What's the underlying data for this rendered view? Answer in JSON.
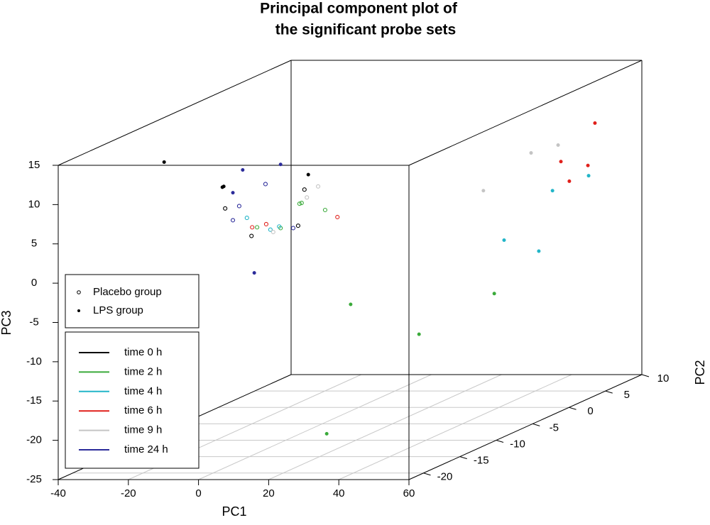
{
  "chart_data": {
    "type": "scatter3d",
    "title": [
      "Principal component plot of",
      "the significant probe sets"
    ],
    "xlabel": "PC1",
    "ylabel": "PC2",
    "zlabel": "PC3",
    "xlim": [
      -40,
      60
    ],
    "xticks": [
      -40,
      -20,
      0,
      20,
      40,
      60
    ],
    "ylim": [
      -22,
      10
    ],
    "yticks": [
      -20,
      -15,
      -10,
      -5,
      0,
      5,
      10
    ],
    "zlim": [
      -25,
      15
    ],
    "zticks": [
      -25,
      -20,
      -15,
      -10,
      -5,
      0,
      5,
      10,
      15
    ],
    "grid": true,
    "groups": [
      {
        "name": "Placebo group",
        "filled": false
      },
      {
        "name": "LPS group",
        "filled": true
      }
    ],
    "times": [
      {
        "name": "time 0 h",
        "color": "#000000"
      },
      {
        "name": "time 2 h",
        "color": "#3aaa3a"
      },
      {
        "name": "time 4 h",
        "color": "#22b5c8"
      },
      {
        "name": "time 6 h",
        "color": "#e0201b"
      },
      {
        "name": "time 9 h",
        "color": "#c4c4c4"
      },
      {
        "name": "time 24 h",
        "color": "#2b2b9a"
      }
    ],
    "points": {
      "x": [
        -34.7,
        -18.1,
        -17.7,
        6.4,
        -12.3,
        -1.5,
        -15.1,
        -9.0,
        8.1,
        27.6,
        28.3,
        32.4,
        38.8,
        46.5,
        25.2,
        57.0,
        47.3,
        55.0,
        49.7,
        55.2,
        44.9,
        31.1,
        41.0,
        -5.8,
        -13.3,
        -15.1,
        2.1,
        -17.3,
        5.3,
        -9.8,
        3.5,
        4.5,
        3.9,
        11.2,
        -8.2,
        -1.5,
        -11.1,
        -4.4,
        -1.9,
        -9.6,
        -5.6,
        14.7,
        9.2,
        6.0,
        -3.6
      ],
      "y": [
        -10,
        -10,
        -10,
        -10,
        -10,
        -10,
        -10,
        -10,
        -5,
        -5,
        5,
        -20,
        5,
        5,
        5,
        5,
        5,
        5,
        5,
        5,
        5,
        5,
        5,
        -10,
        -10,
        -10,
        -10,
        -10,
        -10,
        -10,
        -10,
        -10,
        -10,
        -10,
        -10,
        -10,
        -10,
        -10,
        -10,
        -10,
        -10,
        -10,
        -10,
        -10,
        -10
      ],
      "z": [
        10.4,
        7.2,
        7.3,
        8.8,
        9.4,
        10.1,
        6.5,
        -3.7,
        -9.8,
        -13.6,
        -12.6,
        -20.0,
        5.3,
        6.3,
        0.5,
        9.1,
        4.2,
        3.7,
        1.7,
        2.4,
        0.5,
        -5.8,
        -7.2,
        7.6,
        4.8,
        3.0,
        2.0,
        4.5,
        6.9,
        1.0,
        2.3,
        5.2,
        5.1,
        4.3,
        2.1,
        2.0,
        3.3,
        1.8,
        2.2,
        2.1,
        2.5,
        3.4,
        7.3,
        5.9,
        1.5
      ],
      "group": [
        1,
        1,
        1,
        1,
        1,
        1,
        1,
        1,
        1,
        1,
        1,
        1,
        1,
        1,
        1,
        1,
        1,
        1,
        1,
        1,
        1,
        1,
        1,
        0,
        0,
        0,
        0,
        0,
        0,
        0,
        0,
        0,
        0,
        0,
        0,
        0,
        0,
        0,
        0,
        0,
        0,
        0,
        0,
        0,
        0
      ],
      "time": [
        0,
        0,
        0,
        0,
        5,
        5,
        5,
        5,
        1,
        1,
        1,
        1,
        4,
        4,
        4,
        3,
        3,
        3,
        3,
        2,
        2,
        2,
        2,
        5,
        5,
        5,
        5,
        0,
        0,
        0,
        0,
        1,
        1,
        1,
        1,
        1,
        2,
        2,
        2,
        3,
        3,
        3,
        4,
        4,
        4
      ]
    }
  }
}
